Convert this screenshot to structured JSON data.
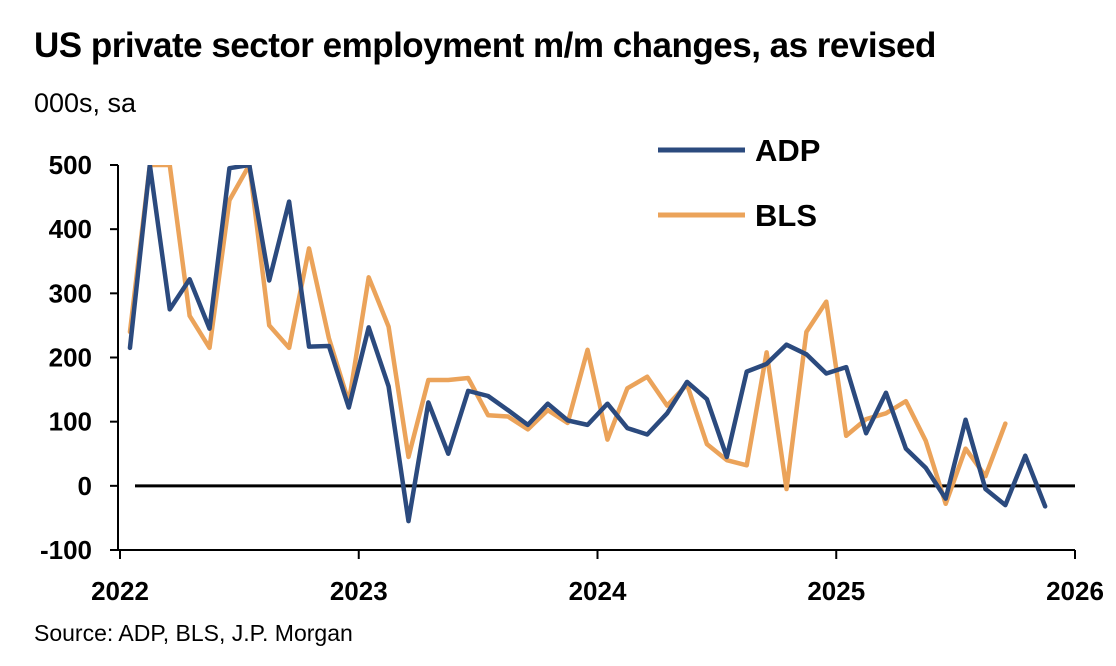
{
  "title": "US private sector employment m/m changes, as revised",
  "subtitle": "000s, sa",
  "source": "Source: ADP, BLS, J.P. Morgan",
  "colors": {
    "ADP": "#2b4a7e",
    "BLS": "#eba35a",
    "axis": "#000000"
  },
  "chart_data": {
    "type": "line",
    "title": "US private sector employment m/m changes, as revised",
    "ylabel": "000s, sa",
    "xlabel": "",
    "ylim": [
      -100,
      500
    ],
    "xlim": [
      2022,
      2026
    ],
    "yticks": [
      500,
      400,
      300,
      200,
      100,
      0,
      -100
    ],
    "xticks": [
      2022,
      2023,
      2024,
      2025,
      2026
    ],
    "legend": "top-right",
    "grid": false,
    "x_unit": "monthly, Jan 2022 onward",
    "series": [
      {
        "name": "ADP",
        "start": "2022-01",
        "values": [
          215,
          500,
          275,
          322,
          245,
          495,
          500,
          320,
          443,
          217,
          218,
          122,
          247,
          155,
          -55,
          130,
          50,
          148,
          140,
          118,
          95,
          128,
          102,
          95,
          128,
          90,
          80,
          113,
          162,
          135,
          45,
          178,
          190,
          220,
          205,
          175,
          185,
          82,
          145,
          58,
          28,
          -20,
          103,
          -5,
          -30,
          47,
          -32
        ]
      },
      {
        "name": "BLS",
        "start": "2022-01",
        "values": [
          240,
          500,
          500,
          265,
          215,
          445,
          500,
          250,
          215,
          370,
          230,
          130,
          325,
          248,
          45,
          165,
          165,
          168,
          110,
          108,
          88,
          118,
          98,
          212,
          72,
          152,
          170,
          125,
          158,
          65,
          40,
          32,
          208,
          -5,
          240,
          287,
          78,
          104,
          113,
          132,
          70,
          -28,
          58,
          15,
          97
        ]
      }
    ]
  }
}
